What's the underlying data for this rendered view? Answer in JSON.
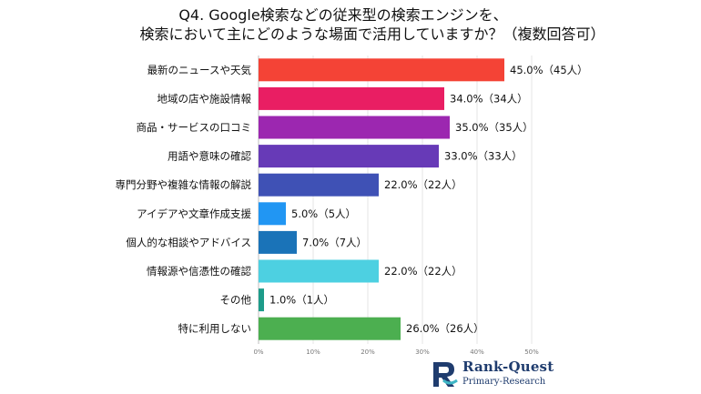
{
  "title_line1": "Q4. Google検索などの従来型の検索エンジンを、",
  "title_line2": "検索において主にどのような場面で活用していますか？（複数回答可）",
  "chart_data": {
    "type": "bar",
    "orientation": "horizontal",
    "title": "Q4. Google検索などの従来型の検索エンジンを、検索において主にどのような場面で活用していますか？（複数回答可）",
    "categories": [
      "最新のニュースや天気",
      "地域の店や施設情報",
      "商品・サービスの口コミ",
      "用語や意味の確認",
      "専門分野や複雑な情報の解説",
      "アイデアや文章作成支援",
      "個人的な相談やアドバイス",
      "情報源や信憑性の確認",
      "その他",
      "特に利用しない"
    ],
    "values": [
      45.0,
      34.0,
      35.0,
      33.0,
      22.0,
      5.0,
      7.0,
      22.0,
      1.0,
      26.0
    ],
    "data_labels": [
      "45.0%（45人）",
      "34.0%（34人）",
      "35.0%（35人）",
      "33.0%（33人）",
      "22.0%（22人）",
      "5.0%（5人）",
      "7.0%（7人）",
      "22.0%（22人）",
      "1.0%（1人）",
      "26.0%（26人）"
    ],
    "bar_colors": [
      "#f44336",
      "#e91e63",
      "#9c27b0",
      "#673ab7",
      "#3f51b5",
      "#2196f3",
      "#1a73b8",
      "#4dd0e1",
      "#1e9c8a",
      "#4caf50"
    ],
    "xlim": [
      0,
      50
    ],
    "xticks": [
      0,
      10,
      20,
      30,
      40,
      50
    ],
    "xtick_labels": [
      "0%",
      "10%",
      "20%",
      "30%",
      "40%",
      "50%"
    ],
    "xlabel": "",
    "ylabel": "",
    "grid": "vertical"
  },
  "brand": {
    "name": "Rank-Quest",
    "subtitle": "Primary-Research",
    "colors": {
      "navy": "#1f3c6e",
      "teal": "#3fb6c6"
    }
  }
}
